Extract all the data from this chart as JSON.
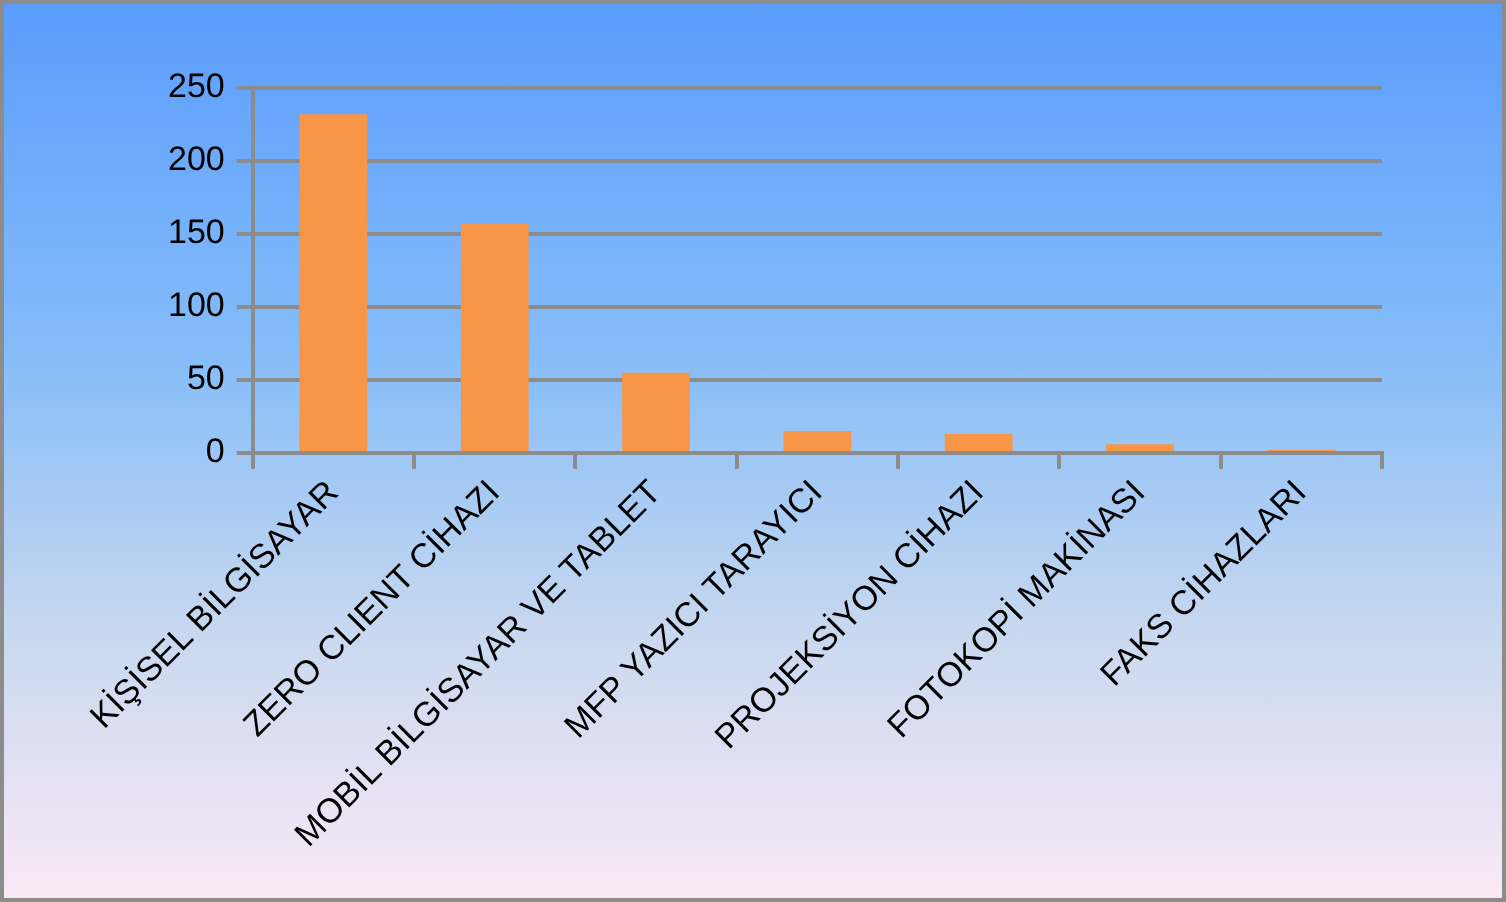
{
  "chart_data": {
    "type": "bar",
    "categories": [
      "KİŞİSEL BİLGİSAYAR",
      "ZERO CLIENT CİHAZI",
      "MOBİL BİLGİSAYAR VE TABLET",
      "MFP YAZICI TARAYICI",
      "PROJEKSİYON CİHAZI",
      "FOTOKOPİ MAKİNASI",
      "FAKS CİHAZLARI"
    ],
    "values": [
      232,
      157,
      55,
      15,
      13,
      6,
      2
    ],
    "color": "#f79646",
    "ylim": [
      0,
      250
    ],
    "yticks": [
      0,
      50,
      100,
      150,
      200,
      250
    ],
    "grid": "y"
  }
}
